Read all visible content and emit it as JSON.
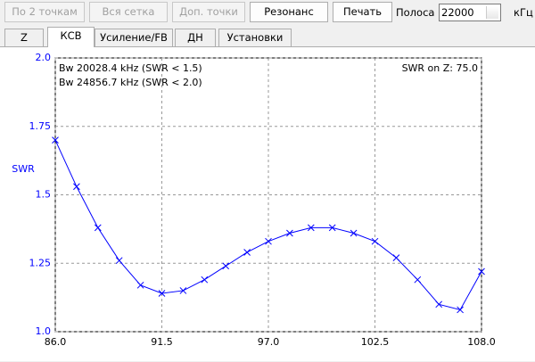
{
  "toolbar": {
    "buttons": [
      "По 2 точкам",
      "Вся сетка",
      "Доп. точки",
      "Резонанс",
      "Печать"
    ],
    "band_label": "Полоса",
    "band_value": "22000",
    "band_unit": "кГц"
  },
  "tabs": [
    "Z",
    "КСВ",
    "Усиление/FB",
    "ДН",
    "Установки"
  ],
  "chart_data": {
    "type": "line",
    "y_label": "SWR",
    "annotations": [
      "Bw 20028.4 kHz (SWR < 1.5)",
      "Bw 24856.7 kHz (SWR < 2.0)",
      "SWR on Z: 75.0"
    ],
    "x": [
      86,
      87.1,
      88.2,
      89.3,
      90.4,
      91.5,
      92.6,
      93.7,
      94.8,
      95.9,
      97,
      98.1,
      99.2,
      100.3,
      101.4,
      102.5,
      103.6,
      104.7,
      105.8,
      106.9,
      108
    ],
    "values": [
      1.7,
      1.53,
      1.38,
      1.26,
      1.17,
      1.14,
      1.15,
      1.19,
      1.24,
      1.29,
      1.33,
      1.36,
      1.38,
      1.38,
      1.36,
      1.33,
      1.27,
      1.19,
      1.1,
      1.08,
      1.22
    ],
    "color": "#0000ff",
    "xlim": [
      86,
      108
    ],
    "xticks": [
      {
        "value": 86,
        "label": "86.0"
      },
      {
        "value": 91.5,
        "label": "91.5"
      },
      {
        "value": 97,
        "label": "97.0"
      },
      {
        "value": 102.5,
        "label": "102.5"
      },
      {
        "value": 108,
        "label": "108.0"
      }
    ],
    "ylim": [
      1,
      2
    ],
    "yticks": [
      {
        "value": 1,
        "label": "1.0"
      },
      1.25,
      {
        "value": 1.5,
        "label": "1.5"
      },
      1.75,
      {
        "value": 2,
        "label": "2.0"
      }
    ],
    "grid": true
  }
}
